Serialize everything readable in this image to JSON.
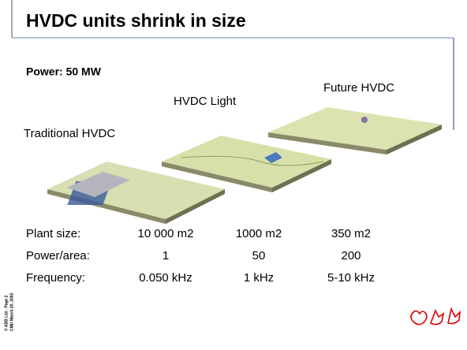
{
  "header": {
    "title": "HVDC units shrink in size"
  },
  "power": "Power: 50 MW",
  "labels": [
    "Traditional HVDC",
    "HVDC Light",
    "Future HVDC"
  ],
  "table": {
    "rows": [
      [
        "Plant size:",
        "10 000 m2",
        "1000 m2",
        "350 m2"
      ],
      [
        "Power/area:",
        "1",
        "50",
        "200"
      ],
      [
        "Frequency:",
        "0.050 kHz",
        "1 kHz",
        "5-10 kHz"
      ]
    ]
  },
  "footer": [
    "© ABB Ltd - Page 2",
    "CMU March 20, 2002"
  ]
}
